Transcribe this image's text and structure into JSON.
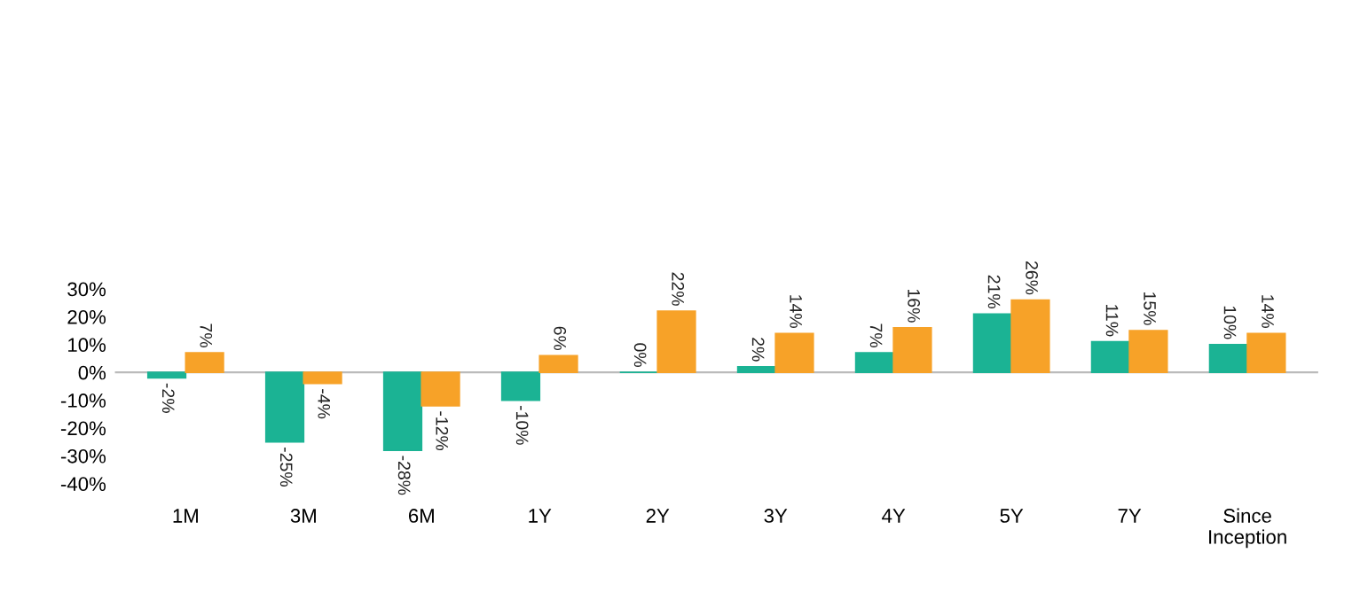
{
  "chart_data": {
    "type": "bar",
    "categories": [
      "1M",
      "3M",
      "6M",
      "1Y",
      "2Y",
      "3Y",
      "4Y",
      "5Y",
      "7Y",
      "Since\nInception"
    ],
    "series": [
      {
        "color": "#1bb394",
        "values": [
          -2,
          -25,
          -28,
          -10,
          0,
          2,
          7,
          21,
          11,
          10
        ],
        "value_labels": [
          "-2%",
          "-25%",
          "-28%",
          "-10%",
          "0%",
          "2%",
          "7%",
          "21%",
          "11%",
          "10%"
        ]
      },
      {
        "color": "#f7a228",
        "values": [
          7,
          -4,
          -12,
          6,
          22,
          14,
          16,
          26,
          15,
          14
        ],
        "value_labels": [
          "7%",
          "-4%",
          "-12%",
          "6%",
          "22%",
          "14%",
          "16%",
          "26%",
          "15%",
          "14%"
        ]
      }
    ],
    "ylim": [
      -40,
      30
    ],
    "yticks": [
      {
        "value": -40,
        "label": "-40%"
      },
      {
        "value": -30,
        "label": "-30%"
      },
      {
        "value": -20,
        "label": "-20%"
      },
      {
        "value": -10,
        "label": "-10%"
      },
      {
        "value": 0,
        "label": "0%"
      },
      {
        "value": 10,
        "label": "10%"
      },
      {
        "value": 20,
        "label": "20%"
      },
      {
        "value": 30,
        "label": "30%"
      }
    ],
    "ref_lines": [
      {
        "axis": "y",
        "value": 0,
        "color": "#bbbbbb"
      }
    ]
  }
}
